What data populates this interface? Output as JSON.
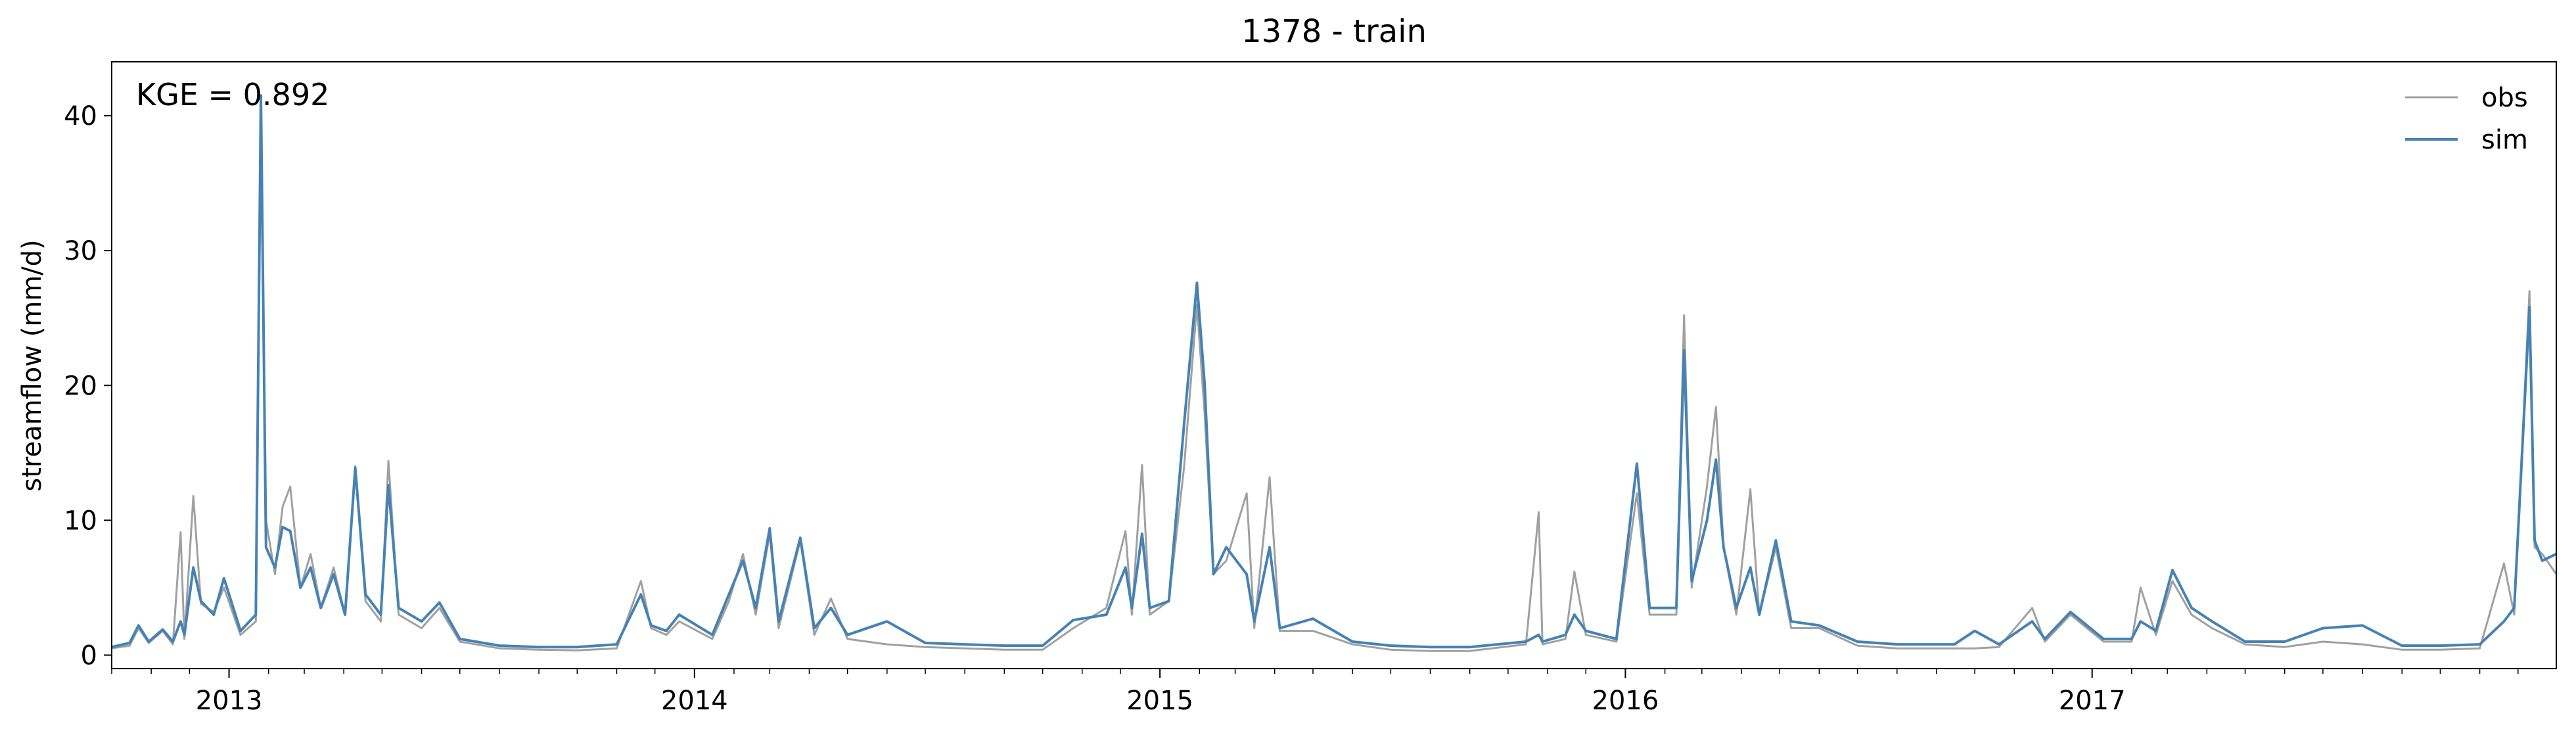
{
  "chart_data": {
    "type": "line",
    "title": "1378 - train",
    "xlabel": "",
    "ylabel": "streamflow (mm/d)",
    "xlim": [
      "2012-10-01",
      "2017-12-31"
    ],
    "ylim": [
      -1,
      44
    ],
    "yticks": [
      0,
      10,
      20,
      30,
      40
    ],
    "xticks": [
      "2013",
      "2014",
      "2015",
      "2016",
      "2017"
    ],
    "annotation": "KGE = 0.892",
    "legend": "top-right",
    "grid": false,
    "colors": {
      "obs": "#a0a0a0",
      "sim": "#4682b4"
    },
    "series": [
      {
        "name": "obs",
        "points": [
          [
            "2012-10-01",
            0.5
          ],
          [
            "2012-10-15",
            0.7
          ],
          [
            "2012-10-22",
            2.0
          ],
          [
            "2012-10-30",
            0.9
          ],
          [
            "2012-11-10",
            1.8
          ],
          [
            "2012-11-18",
            0.8
          ],
          [
            "2012-11-24",
            9.1
          ],
          [
            "2012-11-27",
            1.2
          ],
          [
            "2012-12-04",
            11.8
          ],
          [
            "2012-12-10",
            3.8
          ],
          [
            "2012-12-20",
            3.2
          ],
          [
            "2012-12-28",
            5.0
          ],
          [
            "2013-01-10",
            1.5
          ],
          [
            "2013-01-22",
            2.5
          ],
          [
            "2013-01-26",
            40.0
          ],
          [
            "2013-01-30",
            10.0
          ],
          [
            "2013-02-06",
            6.0
          ],
          [
            "2013-02-12",
            11.0
          ],
          [
            "2013-02-18",
            12.5
          ],
          [
            "2013-02-26",
            5.0
          ],
          [
            "2013-03-06",
            7.5
          ],
          [
            "2013-03-14",
            3.5
          ],
          [
            "2013-03-24",
            6.5
          ],
          [
            "2013-04-02",
            3.0
          ],
          [
            "2013-04-10",
            14.0
          ],
          [
            "2013-04-18",
            4.0
          ],
          [
            "2013-04-30",
            2.5
          ],
          [
            "2013-05-06",
            14.4
          ],
          [
            "2013-05-14",
            3.0
          ],
          [
            "2013-06-01",
            2.0
          ],
          [
            "2013-06-15",
            3.5
          ],
          [
            "2013-07-01",
            1.0
          ],
          [
            "2013-08-01",
            0.5
          ],
          [
            "2013-09-01",
            0.4
          ],
          [
            "2013-10-01",
            0.35
          ],
          [
            "2013-11-01",
            0.5
          ],
          [
            "2013-11-20",
            5.5
          ],
          [
            "2013-11-28",
            2.0
          ],
          [
            "2013-12-10",
            1.5
          ],
          [
            "2013-12-20",
            2.5
          ],
          [
            "2014-01-15",
            1.2
          ],
          [
            "2014-01-28",
            4.0
          ],
          [
            "2014-02-08",
            7.5
          ],
          [
            "2014-02-18",
            3.0
          ],
          [
            "2014-03-01",
            9.0
          ],
          [
            "2014-03-08",
            2.0
          ],
          [
            "2014-03-25",
            8.5
          ],
          [
            "2014-04-05",
            1.5
          ],
          [
            "2014-04-18",
            4.2
          ],
          [
            "2014-05-01",
            1.2
          ],
          [
            "2014-06-01",
            0.8
          ],
          [
            "2014-07-01",
            0.6
          ],
          [
            "2014-08-01",
            0.5
          ],
          [
            "2014-09-01",
            0.4
          ],
          [
            "2014-10-01",
            0.4
          ],
          [
            "2014-10-25",
            2.0
          ],
          [
            "2014-11-20",
            3.5
          ],
          [
            "2014-12-05",
            9.2
          ],
          [
            "2014-12-10",
            3.0
          ],
          [
            "2014-12-18",
            14.1
          ],
          [
            "2014-12-24",
            3.0
          ],
          [
            "2015-01-08",
            4.0
          ],
          [
            "2015-01-20",
            14.0
          ],
          [
            "2015-01-30",
            26.0
          ],
          [
            "2015-02-05",
            18.0
          ],
          [
            "2015-02-12",
            6.0
          ],
          [
            "2015-02-22",
            7.0
          ],
          [
            "2015-03-10",
            12.0
          ],
          [
            "2015-03-16",
            2.0
          ],
          [
            "2015-03-28",
            13.2
          ],
          [
            "2015-04-05",
            1.8
          ],
          [
            "2015-05-01",
            1.8
          ],
          [
            "2015-06-01",
            0.8
          ],
          [
            "2015-07-01",
            0.4
          ],
          [
            "2015-08-01",
            0.3
          ],
          [
            "2015-09-01",
            0.3
          ],
          [
            "2015-10-15",
            0.8
          ],
          [
            "2015-10-25",
            10.6
          ],
          [
            "2015-10-28",
            0.8
          ],
          [
            "2015-11-15",
            1.2
          ],
          [
            "2015-11-22",
            6.2
          ],
          [
            "2015-12-01",
            1.5
          ],
          [
            "2015-12-25",
            1.0
          ],
          [
            "2016-01-10",
            12.0
          ],
          [
            "2016-01-20",
            3.0
          ],
          [
            "2016-02-10",
            3.0
          ],
          [
            "2016-02-16",
            25.2
          ],
          [
            "2016-02-22",
            5.0
          ],
          [
            "2016-03-05",
            12.5
          ],
          [
            "2016-03-12",
            18.4
          ],
          [
            "2016-03-18",
            8.0
          ],
          [
            "2016-03-28",
            3.0
          ],
          [
            "2016-04-08",
            12.3
          ],
          [
            "2016-04-15",
            3.0
          ],
          [
            "2016-04-28",
            8.0
          ],
          [
            "2016-05-10",
            2.0
          ],
          [
            "2016-06-01",
            2.0
          ],
          [
            "2016-07-01",
            0.7
          ],
          [
            "2016-08-01",
            0.5
          ],
          [
            "2016-09-15",
            0.5
          ],
          [
            "2016-10-01",
            0.5
          ],
          [
            "2016-10-20",
            0.6
          ],
          [
            "2016-11-15",
            3.5
          ],
          [
            "2016-11-25",
            1.0
          ],
          [
            "2016-12-15",
            3.0
          ],
          [
            "2017-01-10",
            1.0
          ],
          [
            "2017-02-01",
            1.0
          ],
          [
            "2017-02-08",
            5.0
          ],
          [
            "2017-02-20",
            1.5
          ],
          [
            "2017-03-05",
            5.5
          ],
          [
            "2017-03-20",
            3.0
          ],
          [
            "2017-04-05",
            2.0
          ],
          [
            "2017-05-01",
            0.8
          ],
          [
            "2017-06-01",
            0.6
          ],
          [
            "2017-07-01",
            1.0
          ],
          [
            "2017-08-01",
            0.8
          ],
          [
            "2017-09-01",
            0.4
          ],
          [
            "2017-10-01",
            0.4
          ],
          [
            "2017-11-01",
            0.5
          ],
          [
            "2017-11-20",
            6.8
          ],
          [
            "2017-11-28",
            3.0
          ],
          [
            "2017-12-10",
            27.0
          ],
          [
            "2017-12-14",
            8.0
          ],
          [
            "2017-12-20",
            7.5
          ],
          [
            "2017-12-31",
            6.0
          ]
        ]
      },
      {
        "name": "sim",
        "points": [
          [
            "2012-10-01",
            0.6
          ],
          [
            "2012-10-15",
            0.9
          ],
          [
            "2012-10-22",
            2.2
          ],
          [
            "2012-10-30",
            1.0
          ],
          [
            "2012-11-10",
            1.9
          ],
          [
            "2012-11-18",
            1.0
          ],
          [
            "2012-11-24",
            2.5
          ],
          [
            "2012-11-27",
            1.5
          ],
          [
            "2012-12-04",
            6.5
          ],
          [
            "2012-12-10",
            4.0
          ],
          [
            "2012-12-20",
            3.0
          ],
          [
            "2012-12-28",
            5.7
          ],
          [
            "2013-01-10",
            1.8
          ],
          [
            "2013-01-22",
            3.0
          ],
          [
            "2013-01-26",
            41.5
          ],
          [
            "2013-01-30",
            8.0
          ],
          [
            "2013-02-06",
            6.5
          ],
          [
            "2013-02-12",
            9.5
          ],
          [
            "2013-02-18",
            9.2
          ],
          [
            "2013-02-26",
            5.0
          ],
          [
            "2013-03-06",
            6.5
          ],
          [
            "2013-03-14",
            3.5
          ],
          [
            "2013-03-24",
            6.0
          ],
          [
            "2013-04-02",
            3.0
          ],
          [
            "2013-04-10",
            13.9
          ],
          [
            "2013-04-18",
            4.5
          ],
          [
            "2013-04-30",
            3.0
          ],
          [
            "2013-05-06",
            12.6
          ],
          [
            "2013-05-14",
            3.5
          ],
          [
            "2013-06-01",
            2.5
          ],
          [
            "2013-06-15",
            3.9
          ],
          [
            "2013-07-01",
            1.2
          ],
          [
            "2013-08-01",
            0.7
          ],
          [
            "2013-09-01",
            0.6
          ],
          [
            "2013-10-01",
            0.6
          ],
          [
            "2013-11-01",
            0.8
          ],
          [
            "2013-11-20",
            4.5
          ],
          [
            "2013-11-28",
            2.2
          ],
          [
            "2013-12-10",
            1.8
          ],
          [
            "2013-12-20",
            3.0
          ],
          [
            "2014-01-15",
            1.5
          ],
          [
            "2014-01-28",
            4.5
          ],
          [
            "2014-02-08",
            7.0
          ],
          [
            "2014-02-18",
            3.5
          ],
          [
            "2014-03-01",
            9.4
          ],
          [
            "2014-03-08",
            2.5
          ],
          [
            "2014-03-25",
            8.7
          ],
          [
            "2014-04-05",
            2.0
          ],
          [
            "2014-04-18",
            3.5
          ],
          [
            "2014-05-01",
            1.5
          ],
          [
            "2014-06-01",
            2.5
          ],
          [
            "2014-07-01",
            0.9
          ],
          [
            "2014-08-01",
            0.8
          ],
          [
            "2014-09-01",
            0.7
          ],
          [
            "2014-10-01",
            0.7
          ],
          [
            "2014-10-25",
            2.6
          ],
          [
            "2014-11-20",
            3.0
          ],
          [
            "2014-12-05",
            6.5
          ],
          [
            "2014-12-10",
            3.5
          ],
          [
            "2014-12-18",
            9.0
          ],
          [
            "2014-12-24",
            3.5
          ],
          [
            "2015-01-08",
            4.0
          ],
          [
            "2015-01-20",
            17.2
          ],
          [
            "2015-01-30",
            27.6
          ],
          [
            "2015-02-05",
            20.2
          ],
          [
            "2015-02-12",
            6.0
          ],
          [
            "2015-02-22",
            8.0
          ],
          [
            "2015-03-10",
            6.0
          ],
          [
            "2015-03-16",
            2.5
          ],
          [
            "2015-03-28",
            8.0
          ],
          [
            "2015-04-05",
            2.0
          ],
          [
            "2015-05-01",
            2.7
          ],
          [
            "2015-06-01",
            1.0
          ],
          [
            "2015-07-01",
            0.7
          ],
          [
            "2015-08-01",
            0.6
          ],
          [
            "2015-09-01",
            0.6
          ],
          [
            "2015-10-15",
            1.0
          ],
          [
            "2015-10-25",
            1.5
          ],
          [
            "2015-10-28",
            1.0
          ],
          [
            "2015-11-15",
            1.5
          ],
          [
            "2015-11-22",
            3.0
          ],
          [
            "2015-12-01",
            1.8
          ],
          [
            "2015-12-25",
            1.2
          ],
          [
            "2016-01-10",
            14.2
          ],
          [
            "2016-01-20",
            3.5
          ],
          [
            "2016-02-10",
            3.5
          ],
          [
            "2016-02-16",
            22.6
          ],
          [
            "2016-02-22",
            5.5
          ],
          [
            "2016-03-05",
            10.0
          ],
          [
            "2016-03-12",
            14.5
          ],
          [
            "2016-03-18",
            8.0
          ],
          [
            "2016-03-28",
            3.5
          ],
          [
            "2016-04-08",
            6.5
          ],
          [
            "2016-04-15",
            3.0
          ],
          [
            "2016-04-28",
            8.5
          ],
          [
            "2016-05-10",
            2.5
          ],
          [
            "2016-06-01",
            2.2
          ],
          [
            "2016-07-01",
            1.0
          ],
          [
            "2016-08-01",
            0.8
          ],
          [
            "2016-09-15",
            0.8
          ],
          [
            "2016-10-01",
            1.8
          ],
          [
            "2016-10-20",
            0.8
          ],
          [
            "2016-11-15",
            2.5
          ],
          [
            "2016-11-25",
            1.2
          ],
          [
            "2016-12-15",
            3.2
          ],
          [
            "2017-01-10",
            1.2
          ],
          [
            "2017-02-01",
            1.2
          ],
          [
            "2017-02-08",
            2.5
          ],
          [
            "2017-02-20",
            1.8
          ],
          [
            "2017-03-05",
            6.3
          ],
          [
            "2017-03-20",
            3.5
          ],
          [
            "2017-04-05",
            2.5
          ],
          [
            "2017-05-01",
            1.0
          ],
          [
            "2017-06-01",
            1.0
          ],
          [
            "2017-07-01",
            2.0
          ],
          [
            "2017-08-01",
            2.2
          ],
          [
            "2017-09-01",
            0.7
          ],
          [
            "2017-10-01",
            0.7
          ],
          [
            "2017-11-01",
            0.8
          ],
          [
            "2017-11-20",
            2.5
          ],
          [
            "2017-11-28",
            3.5
          ],
          [
            "2017-12-10",
            25.8
          ],
          [
            "2017-12-14",
            8.5
          ],
          [
            "2017-12-20",
            7.0
          ],
          [
            "2017-12-31",
            7.5
          ]
        ]
      }
    ]
  }
}
